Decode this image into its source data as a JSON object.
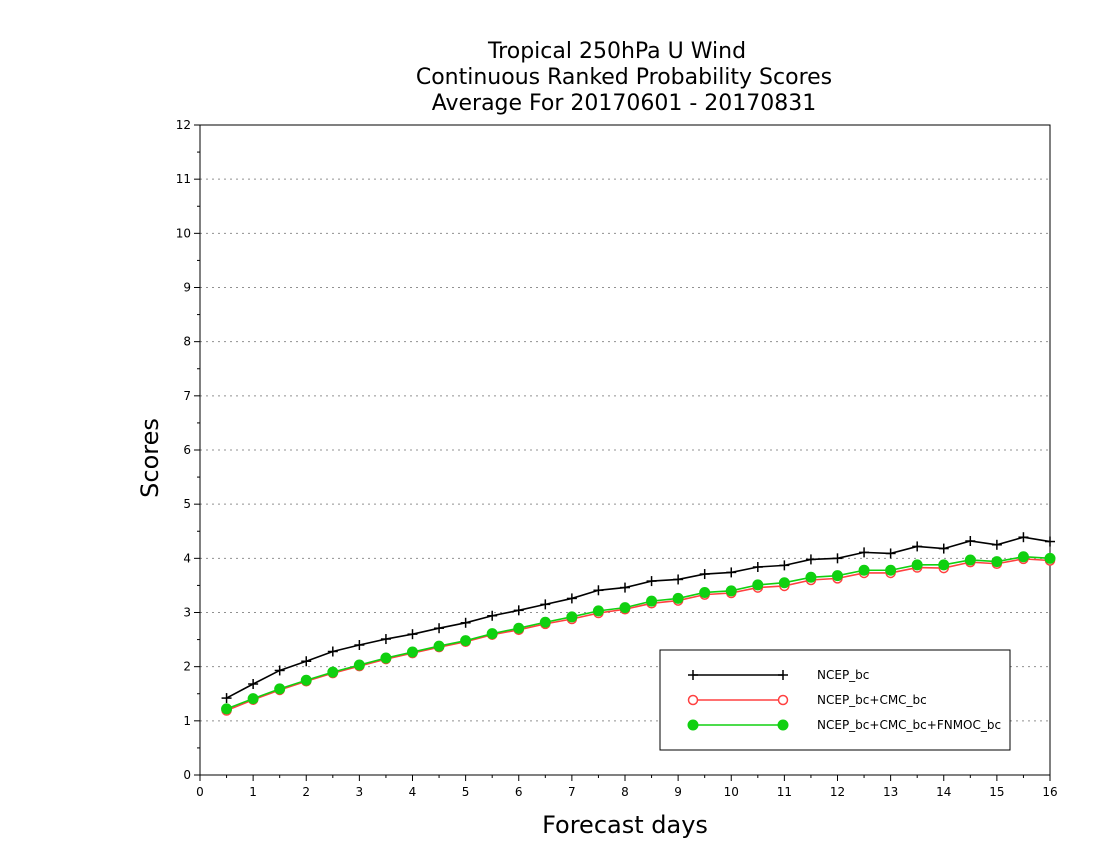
{
  "chart_data": {
    "type": "line",
    "title": [
      "Tropical 250hPa U Wind",
      "Continuous Ranked Probability Scores",
      "Average For 20170601 - 20170831"
    ],
    "xlabel": "Forecast days",
    "ylabel": "Scores",
    "xlim": [
      0,
      16
    ],
    "ylim": [
      0,
      12
    ],
    "xticks": [
      "0",
      "1",
      "2",
      "3",
      "4",
      "5",
      "6",
      "7",
      "8",
      "9",
      "10",
      "11",
      "12",
      "13",
      "14",
      "15",
      "16"
    ],
    "yticks": [
      "0",
      "1",
      "2",
      "3",
      "4",
      "5",
      "6",
      "7",
      "8",
      "9",
      "10",
      "11",
      "12"
    ],
    "grid": "horizontal-dotted",
    "legend_position": "bottom-right",
    "x": [
      0.5,
      1,
      1.5,
      2,
      2.5,
      3,
      3.5,
      4,
      4.5,
      5,
      5.5,
      6,
      6.5,
      7,
      7.5,
      8,
      8.5,
      9,
      9.5,
      10,
      10.5,
      11,
      11.5,
      12,
      12.5,
      13,
      13.5,
      14,
      14.5,
      15,
      15.5,
      16
    ],
    "series": [
      {
        "name": "NCEP_bc",
        "color": "#000000",
        "marker": "plus",
        "values": [
          1.42,
          1.68,
          1.93,
          2.1,
          2.28,
          2.4,
          2.51,
          2.6,
          2.71,
          2.81,
          2.94,
          3.04,
          3.15,
          3.26,
          3.41,
          3.46,
          3.58,
          3.61,
          3.71,
          3.74,
          3.84,
          3.87,
          3.98,
          4.0,
          4.11,
          4.09,
          4.22,
          4.18,
          4.32,
          4.25,
          4.39,
          4.31
        ]
      },
      {
        "name": "NCEP_bc+CMC_bc",
        "color": "#ff4040",
        "marker": "open-circle",
        "values": [
          1.19,
          1.39,
          1.57,
          1.73,
          1.88,
          2.01,
          2.14,
          2.25,
          2.36,
          2.46,
          2.59,
          2.68,
          2.79,
          2.88,
          2.99,
          3.06,
          3.17,
          3.22,
          3.33,
          3.36,
          3.46,
          3.49,
          3.6,
          3.63,
          3.73,
          3.73,
          3.83,
          3.82,
          3.93,
          3.9,
          3.99,
          3.96
        ]
      },
      {
        "name": "NCEP_bc+CMC_bc+FNMOC_bc",
        "color": "#10d010",
        "marker": "filled-circle",
        "values": [
          1.22,
          1.41,
          1.59,
          1.75,
          1.9,
          2.03,
          2.16,
          2.27,
          2.38,
          2.48,
          2.61,
          2.71,
          2.82,
          2.92,
          3.03,
          3.09,
          3.21,
          3.26,
          3.37,
          3.4,
          3.51,
          3.55,
          3.65,
          3.68,
          3.78,
          3.78,
          3.88,
          3.88,
          3.97,
          3.94,
          4.03,
          4.0
        ]
      }
    ]
  }
}
